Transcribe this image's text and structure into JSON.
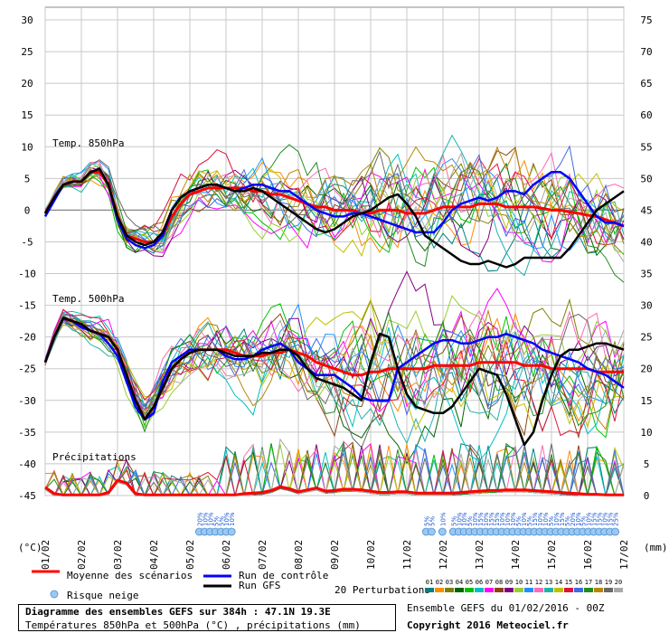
{
  "chart_data": {
    "type": "line",
    "title": "Diagramme des ensembles GEFS sur 384h : 47.1N 19.3E",
    "subtitle": "Températures 850hPa et 500hPa (°C) , précipitations (mm)",
    "left_unit": "(°C)",
    "right_unit": "(mm)",
    "left_axis_ticks": [
      30,
      25,
      20,
      15,
      10,
      5,
      0,
      -5,
      -10,
      -15,
      -20,
      -25,
      -30,
      -35,
      -40,
      -45
    ],
    "right_axis_ticks": [
      75,
      70,
      65,
      60,
      55,
      50,
      45,
      40,
      35,
      30,
      25,
      20,
      15,
      10,
      5,
      0
    ],
    "ylim_left": [
      -45,
      30
    ],
    "x_ticks": [
      "01/02",
      "02/02",
      "03/02",
      "04/02",
      "05/02",
      "06/02",
      "07/02",
      "08/02",
      "09/02",
      "10/02",
      "11/02",
      "12/02",
      "13/02",
      "14/02",
      "15/02",
      "16/02",
      "17/02"
    ],
    "panel_labels": {
      "t850": "Temp. 850hPa",
      "t500": "Temp. 500hPa",
      "precip": "Précipitations"
    },
    "series": [
      {
        "name": "Moyenne des scénarios",
        "color": "#ff0000",
        "panel": "t850",
        "values": [
          -0.5,
          2,
          4,
          4.5,
          4.5,
          6,
          6,
          4,
          -1,
          -4,
          -4.5,
          -5,
          -5,
          -4,
          -1,
          1,
          2.5,
          3,
          3.5,
          3.5,
          3.5,
          3.5,
          3.5,
          3,
          3,
          2.5,
          2.5,
          2,
          1.5,
          1,
          0.5,
          0.5,
          0,
          0,
          0,
          -0.5,
          -0.5,
          0,
          0,
          0,
          -0.5,
          -0.5,
          -0.5,
          0,
          0.5,
          0.5,
          0.5,
          0.5,
          1,
          1,
          1,
          0.5,
          0.5,
          0.5,
          0.5,
          0.3,
          0,
          0,
          -0.3,
          -0.5,
          -0.8,
          -1,
          -1.5,
          -2,
          -2.5
        ]
      },
      {
        "name": "Run de contrôle",
        "color": "#0000ff",
        "panel": "t850",
        "values": [
          -1,
          1.5,
          4,
          4.5,
          4.5,
          6,
          6.5,
          4,
          -1.5,
          -4.5,
          -5.5,
          -6,
          -5.5,
          -4,
          0,
          2,
          3,
          3.5,
          4,
          4,
          3.5,
          3,
          3.5,
          4,
          4,
          3.5,
          3,
          3,
          2,
          1,
          0,
          -0.5,
          -1,
          -1,
          -0.5,
          -0.5,
          -1,
          -1.5,
          -2,
          -2.5,
          -3,
          -3.5,
          -3.5,
          -3.5,
          -2,
          0,
          1,
          1.5,
          2,
          1.5,
          2,
          3,
          3,
          2.5,
          4,
          5,
          6,
          6,
          5,
          3,
          1,
          -1,
          -2,
          -2,
          -2.5
        ]
      },
      {
        "name": "Run GFS",
        "color": "#000000",
        "panel": "t850",
        "values": [
          -0.5,
          2,
          4,
          4.5,
          4.5,
          6,
          6.5,
          4,
          -1,
          -4,
          -5,
          -5.5,
          -5,
          -3.5,
          0,
          2,
          3,
          3.5,
          4,
          4,
          3.5,
          3,
          3,
          3.5,
          3,
          2,
          1,
          0,
          -1,
          -2,
          -3,
          -3.5,
          -3,
          -2,
          -1,
          -0.5,
          0,
          1,
          2,
          2.5,
          1,
          -1,
          -4,
          -5,
          -6,
          -7,
          -8,
          -8.5,
          -8.5,
          -8,
          -8.5,
          -9,
          -8.5,
          -7.5,
          -7.5,
          -7.5,
          -7.5,
          -7.5,
          -6,
          -4,
          -2,
          0,
          1,
          2,
          3
        ]
      },
      {
        "name": "Moyenne des scénarios",
        "color": "#ff0000",
        "panel": "t500",
        "values": [
          -24,
          -20,
          -17,
          -17.5,
          -18,
          -19,
          -19.5,
          -20,
          -22,
          -26,
          -30,
          -33,
          -31,
          -28,
          -25,
          -23.5,
          -22.5,
          -22,
          -22,
          -22,
          -22,
          -22.5,
          -23,
          -23,
          -23,
          -22.5,
          -22.5,
          -22,
          -22.5,
          -23,
          -24,
          -24.5,
          -25,
          -25.5,
          -26,
          -26,
          -25.5,
          -25.5,
          -25,
          -25,
          -25,
          -25,
          -25,
          -24.5,
          -24.5,
          -24.5,
          -24.5,
          -24.5,
          -24,
          -24,
          -24,
          -24,
          -24,
          -24.5,
          -24.5,
          -24.5,
          -25,
          -25,
          -25,
          -25,
          -25,
          -25.5,
          -25.5,
          -25.5,
          -25.5
        ]
      },
      {
        "name": "Run de contrôle",
        "color": "#0000ff",
        "panel": "t500",
        "values": [
          -24,
          -20,
          -17,
          -17.5,
          -18.5,
          -19,
          -19.5,
          -21,
          -23,
          -27,
          -31,
          -33,
          -32,
          -27,
          -24,
          -23,
          -22,
          -22,
          -22,
          -22,
          -23,
          -23.5,
          -23.5,
          -23,
          -22,
          -21.5,
          -21,
          -22,
          -24,
          -25,
          -26,
          -26,
          -26,
          -27,
          -28,
          -29.5,
          -30,
          -30,
          -30,
          -25,
          -24,
          -23,
          -22,
          -21,
          -20.5,
          -20.5,
          -21,
          -21,
          -20.5,
          -20,
          -20,
          -19.5,
          -20,
          -20.5,
          -21,
          -22,
          -22.5,
          -23,
          -23.5,
          -24,
          -25,
          -25.5,
          -26,
          -27,
          -28
        ]
      },
      {
        "name": "Run GFS",
        "color": "#000000",
        "panel": "t500",
        "values": [
          -24,
          -20,
          -17,
          -17.5,
          -18,
          -19,
          -19.5,
          -20,
          -22,
          -26,
          -30,
          -33,
          -31,
          -28,
          -25,
          -23.5,
          -22.5,
          -22,
          -22,
          -22,
          -22.5,
          -23,
          -23,
          -23,
          -22.5,
          -22.5,
          -22,
          -22,
          -23,
          -25,
          -26.5,
          -27,
          -27.5,
          -28,
          -29,
          -30,
          -24,
          -19.5,
          -20,
          -25,
          -29,
          -31,
          -31.5,
          -32,
          -32,
          -31,
          -29,
          -27,
          -25,
          -25.5,
          -26,
          -29,
          -33,
          -37,
          -35,
          -30,
          -26,
          -23,
          -22,
          -22,
          -21.5,
          -21,
          -21,
          -21.5,
          -22
        ]
      },
      {
        "name": "Moyenne des scénarios",
        "color": "#ff0000",
        "panel": "precip",
        "values": [
          1.3,
          0.3,
          0.1,
          0.1,
          0.1,
          0.1,
          0.1,
          0.5,
          2.4,
          2,
          0.3,
          0.1,
          0.1,
          0.1,
          0.1,
          0.1,
          0.1,
          0.1,
          0.1,
          0.1,
          0.1,
          0.1,
          0.3,
          0.4,
          0.5,
          0.8,
          1.4,
          1.1,
          0.6,
          0.9,
          1.2,
          0.7,
          0.8,
          1,
          1,
          0.9,
          0.7,
          0.5,
          0.5,
          0.6,
          0.6,
          0.4,
          0.4,
          0.4,
          0.4,
          0.4,
          0.5,
          0.6,
          0.7,
          0.8,
          0.8,
          0.9,
          0.9,
          0.9,
          0.8,
          0.7,
          0.6,
          0.5,
          0.4,
          0.3,
          0.2,
          0.2,
          0.1,
          0.1,
          0.1
        ]
      }
    ],
    "snow_risk": [
      {
        "x": 29,
        "label": "20%"
      },
      {
        "x": 30,
        "label": "10%"
      },
      {
        "x": 31,
        "label": "10%"
      },
      {
        "x": 32,
        "label": "5%"
      },
      {
        "x": 33,
        "label": "5%"
      },
      {
        "x": 34,
        "label": "10%"
      },
      {
        "x": 35,
        "label": "10%"
      },
      {
        "x": 71,
        "label": "5%"
      },
      {
        "x": 72,
        "label": "5%"
      },
      {
        "x": 74,
        "label": "10%"
      },
      {
        "x": 76,
        "label": "5%"
      },
      {
        "x": 77,
        "label": "10%"
      },
      {
        "x": 78,
        "label": "10%"
      },
      {
        "x": 79,
        "label": "5%"
      },
      {
        "x": 80,
        "label": "10%"
      },
      {
        "x": 81,
        "label": "15%"
      },
      {
        "x": 82,
        "label": "10%"
      },
      {
        "x": 83,
        "label": "15%"
      },
      {
        "x": 84,
        "label": "15%"
      },
      {
        "x": 85,
        "label": "10%"
      },
      {
        "x": 86,
        "label": "10%"
      },
      {
        "x": 87,
        "label": "10%"
      },
      {
        "x": 88,
        "label": "5%"
      },
      {
        "x": 89,
        "label": "10%"
      },
      {
        "x": 90,
        "label": "5%"
      },
      {
        "x": 91,
        "label": "15%"
      },
      {
        "x": 92,
        "label": "10%"
      },
      {
        "x": 93,
        "label": "10%"
      },
      {
        "x": 94,
        "label": "5%"
      },
      {
        "x": 95,
        "label": "10%"
      },
      {
        "x": 96,
        "label": "15%"
      },
      {
        "x": 97,
        "label": "5%"
      },
      {
        "x": 98,
        "label": "20%"
      },
      {
        "x": 99,
        "label": "10%"
      },
      {
        "x": 100,
        "label": "5%"
      },
      {
        "x": 101,
        "label": "10%"
      },
      {
        "x": 102,
        "label": "15%"
      },
      {
        "x": 103,
        "label": "15%"
      },
      {
        "x": 104,
        "label": "10%"
      },
      {
        "x": 105,
        "label": "15%"
      },
      {
        "x": 106,
        "label": "25%"
      }
    ],
    "legend": {
      "mean": "Moyenne des scénarios",
      "control": "Run de contrôle",
      "gfs": "Run GFS",
      "snow": "Risque neige",
      "perturb": "20 Perturbations",
      "perturb_ids": [
        "01",
        "02",
        "03",
        "04",
        "05",
        "06",
        "07",
        "08",
        "09",
        "10",
        "11",
        "12",
        "13",
        "14",
        "15",
        "16",
        "17",
        "18",
        "19",
        "20"
      ],
      "perturb_colors": [
        "#008080",
        "#ff8c00",
        "#808000",
        "#006400",
        "#00c000",
        "#00c0c0",
        "#ff00ff",
        "#8b4513",
        "#800080",
        "#9acd32",
        "#1e90ff",
        "#ff69b4",
        "#20b2aa",
        "#c0c000",
        "#dc143c",
        "#4169e1",
        "#228b22",
        "#b8860b",
        "#696969",
        "#a9a9a9"
      ]
    },
    "footer": {
      "title": "Diagramme des ensembles GEFS sur 384h : 47.1N 19.3E",
      "subtitle": "Températures 850hPa et 500hPa (°C) , précipitations (mm)",
      "run": "Ensemble GEFS du 01/02/2016 - 00Z",
      "copyright": "Copyright 2016 Meteociel.fr"
    }
  }
}
